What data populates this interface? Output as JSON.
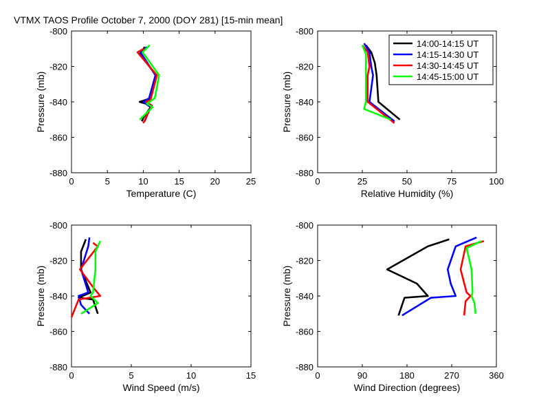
{
  "title": "VTMX TAOS Profile   October 7, 2000 (DOY 281) [15-min mean]",
  "legend": [
    {
      "label": "14:00-14:15 UT",
      "color": "#000000"
    },
    {
      "label": "14:15-14:30 UT",
      "color": "#0000ff"
    },
    {
      "label": "14:30-14:45 UT",
      "color": "#ff0000"
    },
    {
      "label": "14:45-15:00 UT",
      "color": "#00ff00"
    }
  ],
  "chart_data": [
    {
      "type": "line",
      "xlabel": "Temperature (C)",
      "ylabel": "Pressure (mb)",
      "xlim": [
        0,
        25
      ],
      "ylim": [
        -880,
        -800
      ],
      "xticks": [
        0,
        5,
        10,
        15,
        20,
        25
      ],
      "yticks": [
        -800,
        -820,
        -840,
        -860,
        -880
      ],
      "legend": false,
      "series": [
        {
          "name": "14:00-14:15 UT",
          "color": "#000000",
          "x": [
            10.2,
            9.5,
            11.8,
            11.0,
            9.5,
            11.2,
            10.0,
            9.8
          ],
          "y": [
            -809,
            -813,
            -825,
            -838,
            -840,
            -842,
            -849,
            -851
          ]
        },
        {
          "name": "14:15-14:30 UT",
          "color": "#0000ff",
          "x": [
            10.5,
            9.6,
            11.7,
            10.8,
            10.0,
            11.0,
            10.2
          ],
          "y": [
            -809,
            -812,
            -825,
            -838,
            -840,
            -843,
            -851
          ]
        },
        {
          "name": "14:30-14:45 UT",
          "color": "#ff0000",
          "x": [
            10.1,
            9.2,
            11.9,
            11.0,
            10.4,
            11.2,
            10.0
          ],
          "y": [
            -810,
            -812,
            -825,
            -839,
            -840,
            -842,
            -852
          ]
        },
        {
          "name": "14:45-15:00 UT",
          "color": "#00ff00",
          "x": [
            10.9,
            9.9,
            12.2,
            11.6,
            10.5,
            11.3,
            9.5
          ],
          "y": [
            -808,
            -812,
            -825,
            -838,
            -841,
            -843,
            -850
          ]
        }
      ]
    },
    {
      "type": "line",
      "xlabel": "Relative Humidity (%)",
      "ylabel": "Pressure (mb)",
      "xlim": [
        0,
        100
      ],
      "ylim": [
        -880,
        -800
      ],
      "xticks": [
        0,
        25,
        50,
        75,
        100
      ],
      "yticks": [
        -800,
        -820,
        -840,
        -860,
        -880
      ],
      "legend": true,
      "series": [
        {
          "name": "14:00-14:15 UT",
          "color": "#000000",
          "x": [
            27,
            30,
            32,
            33,
            34,
            46
          ],
          "y": [
            -808,
            -812,
            -818,
            -825,
            -840,
            -850
          ]
        },
        {
          "name": "14:15-14:30 UT",
          "color": "#0000ff",
          "x": [
            26,
            29,
            30,
            31,
            29,
            43
          ],
          "y": [
            -807,
            -812,
            -820,
            -825,
            -840,
            -851
          ]
        },
        {
          "name": "14:30-14:45 UT",
          "color": "#ff0000",
          "x": [
            25,
            28,
            29,
            28,
            28,
            43
          ],
          "y": [
            -808,
            -812,
            -820,
            -825,
            -840,
            -852
          ]
        },
        {
          "name": "14:45-15:00 UT",
          "color": "#00ff00",
          "x": [
            25,
            27,
            27,
            27,
            27,
            26,
            41
          ],
          "y": [
            -808,
            -813,
            -820,
            -825,
            -840,
            -844,
            -850
          ]
        }
      ]
    },
    {
      "type": "line",
      "xlabel": "Wind Speed (m/s)",
      "ylabel": "Pressure (mb)",
      "xlim": [
        0,
        15
      ],
      "ylim": [
        -880,
        -800
      ],
      "xticks": [
        0,
        5,
        10,
        15
      ],
      "yticks": [
        -800,
        -820,
        -840,
        -860,
        -880
      ],
      "legend": false,
      "series": [
        {
          "name": "14:00-14:15 UT",
          "color": "#000000",
          "x": [
            1.2,
            0.8,
            0.8,
            1.6,
            0.6,
            1.8,
            2.2
          ],
          "y": [
            -808,
            -815,
            -825,
            -838,
            -841,
            -842,
            -850
          ]
        },
        {
          "name": "14:15-14:30 UT",
          "color": "#0000ff",
          "x": [
            1.5,
            1.4,
            0.8,
            1.4,
            0.6,
            0.8,
            1.5
          ],
          "y": [
            -807,
            -812,
            -825,
            -838,
            -840,
            -845,
            -850
          ]
        },
        {
          "name": "14:30-14:45 UT",
          "color": "#ff0000",
          "x": [
            1.8,
            2.2,
            0.7,
            1.8,
            2.4,
            0.6,
            0.0
          ],
          "y": [
            -810,
            -812,
            -825,
            -835,
            -840,
            -842,
            -852
          ]
        },
        {
          "name": "14:45-15:00 UT",
          "color": "#00ff00",
          "x": [
            2.4,
            2.0,
            2.0,
            1.8,
            1.6,
            2.2,
            0.8
          ],
          "y": [
            -809,
            -815,
            -825,
            -838,
            -840,
            -844,
            -850
          ]
        }
      ]
    },
    {
      "type": "line",
      "xlabel": "Wind Direction (degrees)",
      "ylabel": "Pressure (mb)",
      "xlim": [
        0,
        360
      ],
      "ylim": [
        -880,
        -800
      ],
      "xticks": [
        0,
        90,
        180,
        270,
        360
      ],
      "yticks": [
        -800,
        -820,
        -840,
        -860,
        -880
      ],
      "legend": false,
      "series": [
        {
          "name": "14:00-14:15 UT",
          "color": "#000000",
          "x": [
            265,
            222,
            140,
            200,
            222,
            175,
            163
          ],
          "y": [
            -808,
            -812,
            -825,
            -833,
            -840,
            -841,
            -851
          ]
        },
        {
          "name": "14:15-14:30 UT",
          "color": "#0000ff",
          "x": [
            320,
            278,
            262,
            268,
            278,
            228,
            170
          ],
          "y": [
            -807,
            -812,
            -825,
            -833,
            -840,
            -841,
            -851
          ]
        },
        {
          "name": "14:30-14:45 UT",
          "color": "#ff0000",
          "x": [
            335,
            298,
            288,
            300,
            308,
            298,
            295
          ],
          "y": [
            -809,
            -812,
            -825,
            -838,
            -840,
            -843,
            -851
          ]
        },
        {
          "name": "14:45-15:00 UT",
          "color": "#00ff00",
          "x": [
            330,
            300,
            310,
            312,
            310,
            316,
            318
          ],
          "y": [
            -809,
            -813,
            -825,
            -838,
            -840,
            -844,
            -850
          ]
        }
      ]
    }
  ]
}
